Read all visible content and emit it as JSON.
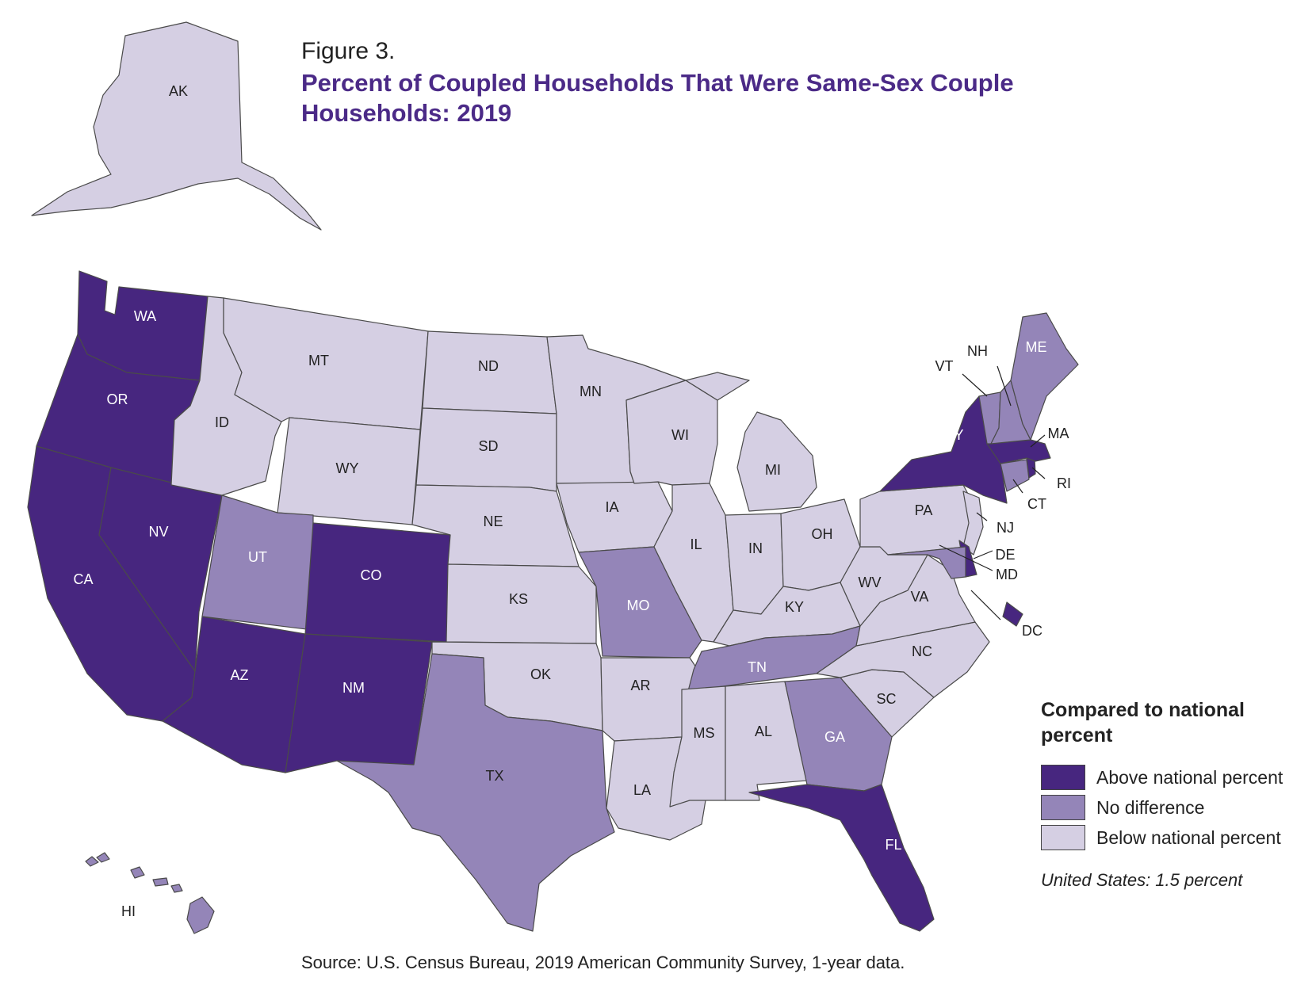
{
  "figure": {
    "label": "Figure 3.",
    "title": "Percent of Coupled Households That Were Same-Sex Couple Households: 2019",
    "source": "Source: U.S. Census Bureau, 2019 American Community Survey, 1-year data."
  },
  "colors": {
    "above": "#47267f",
    "no_difference": "#9485b8",
    "below": "#d5cfe3",
    "title": "#4b2a87"
  },
  "legend": {
    "title": "Compared to national percent",
    "items": [
      {
        "key": "above",
        "label": "Above national percent"
      },
      {
        "key": "no_difference",
        "label": "No difference"
      },
      {
        "key": "below",
        "label": "Below national percent"
      }
    ],
    "note": "United States: 1.5 percent"
  },
  "states": {
    "AK": "below",
    "HI": "no_difference",
    "WA": "above",
    "OR": "above",
    "CA": "above",
    "NV": "above",
    "AZ": "above",
    "ID": "below",
    "MT": "below",
    "WY": "below",
    "UT": "no_difference",
    "CO": "above",
    "NM": "above",
    "ND": "below",
    "SD": "below",
    "NE": "below",
    "KS": "below",
    "OK": "below",
    "TX": "no_difference",
    "MN": "below",
    "IA": "below",
    "MO": "no_difference",
    "AR": "below",
    "LA": "below",
    "WI": "below",
    "IL": "below",
    "MI": "below",
    "IN": "below",
    "OH": "below",
    "KY": "below",
    "TN": "no_difference",
    "MS": "below",
    "AL": "below",
    "GA": "no_difference",
    "FL": "above",
    "SC": "below",
    "NC": "below",
    "VA": "below",
    "WV": "below",
    "PA": "below",
    "NY": "above",
    "NJ": "below",
    "DE": "above",
    "MD": "no_difference",
    "DC": "above",
    "CT": "no_difference",
    "RI": "above",
    "MA": "above",
    "VT": "no_difference",
    "NH": "no_difference",
    "ME": "no_difference"
  }
}
